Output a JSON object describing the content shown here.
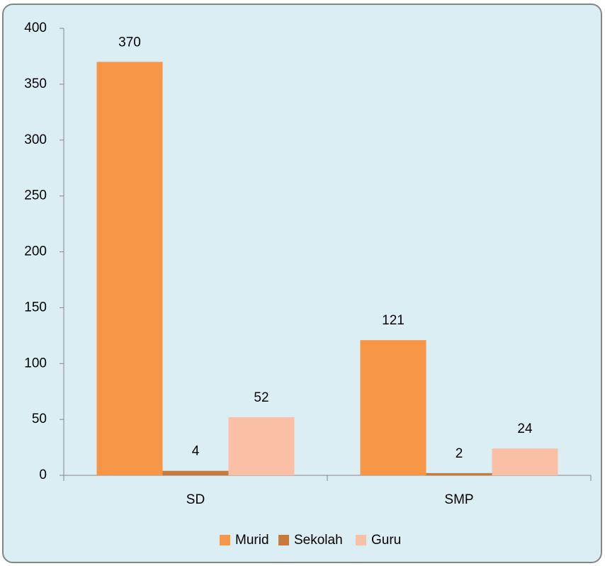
{
  "chart_data": {
    "type": "bar",
    "categories": [
      "SD",
      "SMP"
    ],
    "series": [
      {
        "name": "Murid",
        "color": "#f79646",
        "values": [
          370,
          121
        ]
      },
      {
        "name": "Sekolah",
        "color": "#c77a3a",
        "values": [
          4,
          2
        ]
      },
      {
        "name": "Guru",
        "color": "#f9c0a6",
        "values": [
          52,
          24
        ]
      }
    ],
    "ylim": [
      0,
      400
    ],
    "yticks": [
      0,
      50,
      100,
      150,
      200,
      250,
      300,
      350,
      400
    ],
    "legend": "bottom"
  }
}
